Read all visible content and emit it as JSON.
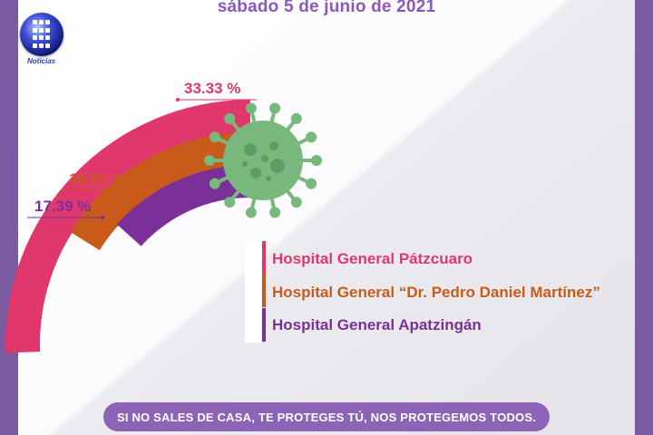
{
  "header": {
    "date": "sábado 5 de junio de 2021"
  },
  "logo": {
    "text": "Noticias"
  },
  "chart_data": {
    "type": "pie",
    "title": "",
    "categories": [
      "Hospital General Pátzcuaro",
      "Hospital General “Dr. Pedro Daniel Martínez”",
      "Hospital General Apatzingán"
    ],
    "values": [
      33.33,
      18.92,
      17.39
    ],
    "value_labels": [
      "33.33 %",
      "18.92 %",
      "17.39 %"
    ],
    "colors": [
      "#e0376c",
      "#c85b1a",
      "#7b2f99"
    ],
    "legend_placement": "right"
  },
  "footer": {
    "text": "SI NO SALES DE CASA, TE PROTEGES TÚ, NOS PROTEGEMOS TODOS."
  }
}
